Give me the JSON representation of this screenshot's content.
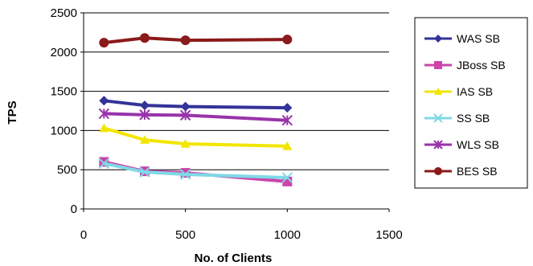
{
  "chart_data": {
    "type": "line",
    "xlabel": "No. of Clients",
    "ylabel": "TPS",
    "xlim": [
      0,
      1500
    ],
    "ylim": [
      0,
      2500
    ],
    "x_ticks": [
      "0",
      "500",
      "1000",
      "1500"
    ],
    "y_ticks": [
      "0",
      "500",
      "1000",
      "1500",
      "2000",
      "2500"
    ],
    "grid": "horizontal",
    "legend": "right",
    "x": [
      100,
      300,
      500,
      1000
    ],
    "series": [
      {
        "name": "WAS SB",
        "values": [
          1380,
          1320,
          1305,
          1290
        ],
        "color": "#333399",
        "marker": "diamond"
      },
      {
        "name": "JBoss SB",
        "values": [
          600,
          480,
          460,
          350
        ],
        "color": "#cc44aa",
        "marker": "square"
      },
      {
        "name": "IAS SB",
        "values": [
          1030,
          880,
          830,
          800
        ],
        "color": "#f2e600",
        "marker": "triangle"
      },
      {
        "name": "SS SB",
        "values": [
          580,
          470,
          440,
          400
        ],
        "color": "#7fd9e6",
        "marker": "x"
      },
      {
        "name": "WLS SB",
        "values": [
          1215,
          1200,
          1195,
          1130
        ],
        "color": "#9933aa",
        "marker": "star"
      },
      {
        "name": "BES SB",
        "values": [
          2120,
          2180,
          2150,
          2160
        ],
        "color": "#8b1a1a",
        "marker": "circle"
      }
    ]
  }
}
